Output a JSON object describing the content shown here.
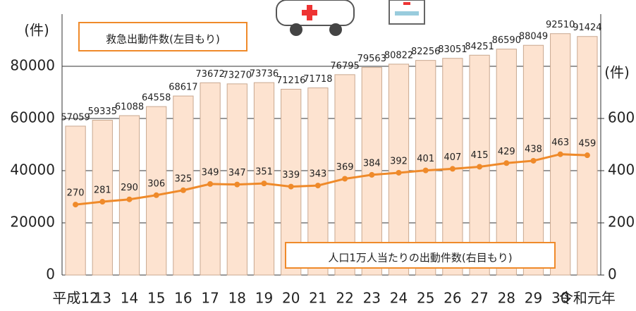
{
  "chart_data": {
    "type": "bar-line",
    "y_label": "(件)",
    "y2_label": "(件)",
    "categories": [
      "平成12",
      "13",
      "14",
      "15",
      "16",
      "17",
      "18",
      "19",
      "20",
      "21",
      "22",
      "23",
      "24",
      "25",
      "26",
      "27",
      "28",
      "29",
      "30",
      "令和元年"
    ],
    "series": [
      {
        "name": "救急出動件数(左目もり)",
        "type": "bar",
        "color": "#fde3d0",
        "values": [
          57059,
          59335,
          61088,
          64558,
          68617,
          73672,
          73270,
          73736,
          71216,
          71718,
          76795,
          79563,
          80822,
          82256,
          83051,
          84251,
          86590,
          88049,
          92510,
          91424
        ]
      },
      {
        "name": "人口1万人当たりの出動件数(右目もり)",
        "type": "line",
        "axis": "y2",
        "color": "#ef8a2a",
        "values": [
          270,
          281,
          290,
          306,
          325,
          349,
          347,
          351,
          339,
          343,
          369,
          384,
          392,
          401,
          407,
          415,
          429,
          438,
          463,
          459
        ]
      }
    ],
    "ylim": [
      0,
      100000
    ],
    "yticks": [
      0,
      20000,
      40000,
      60000,
      80000
    ],
    "y2lim": [
      0,
      1000
    ],
    "y2ticks": [
      0,
      200,
      400,
      600
    ],
    "grid": true
  }
}
